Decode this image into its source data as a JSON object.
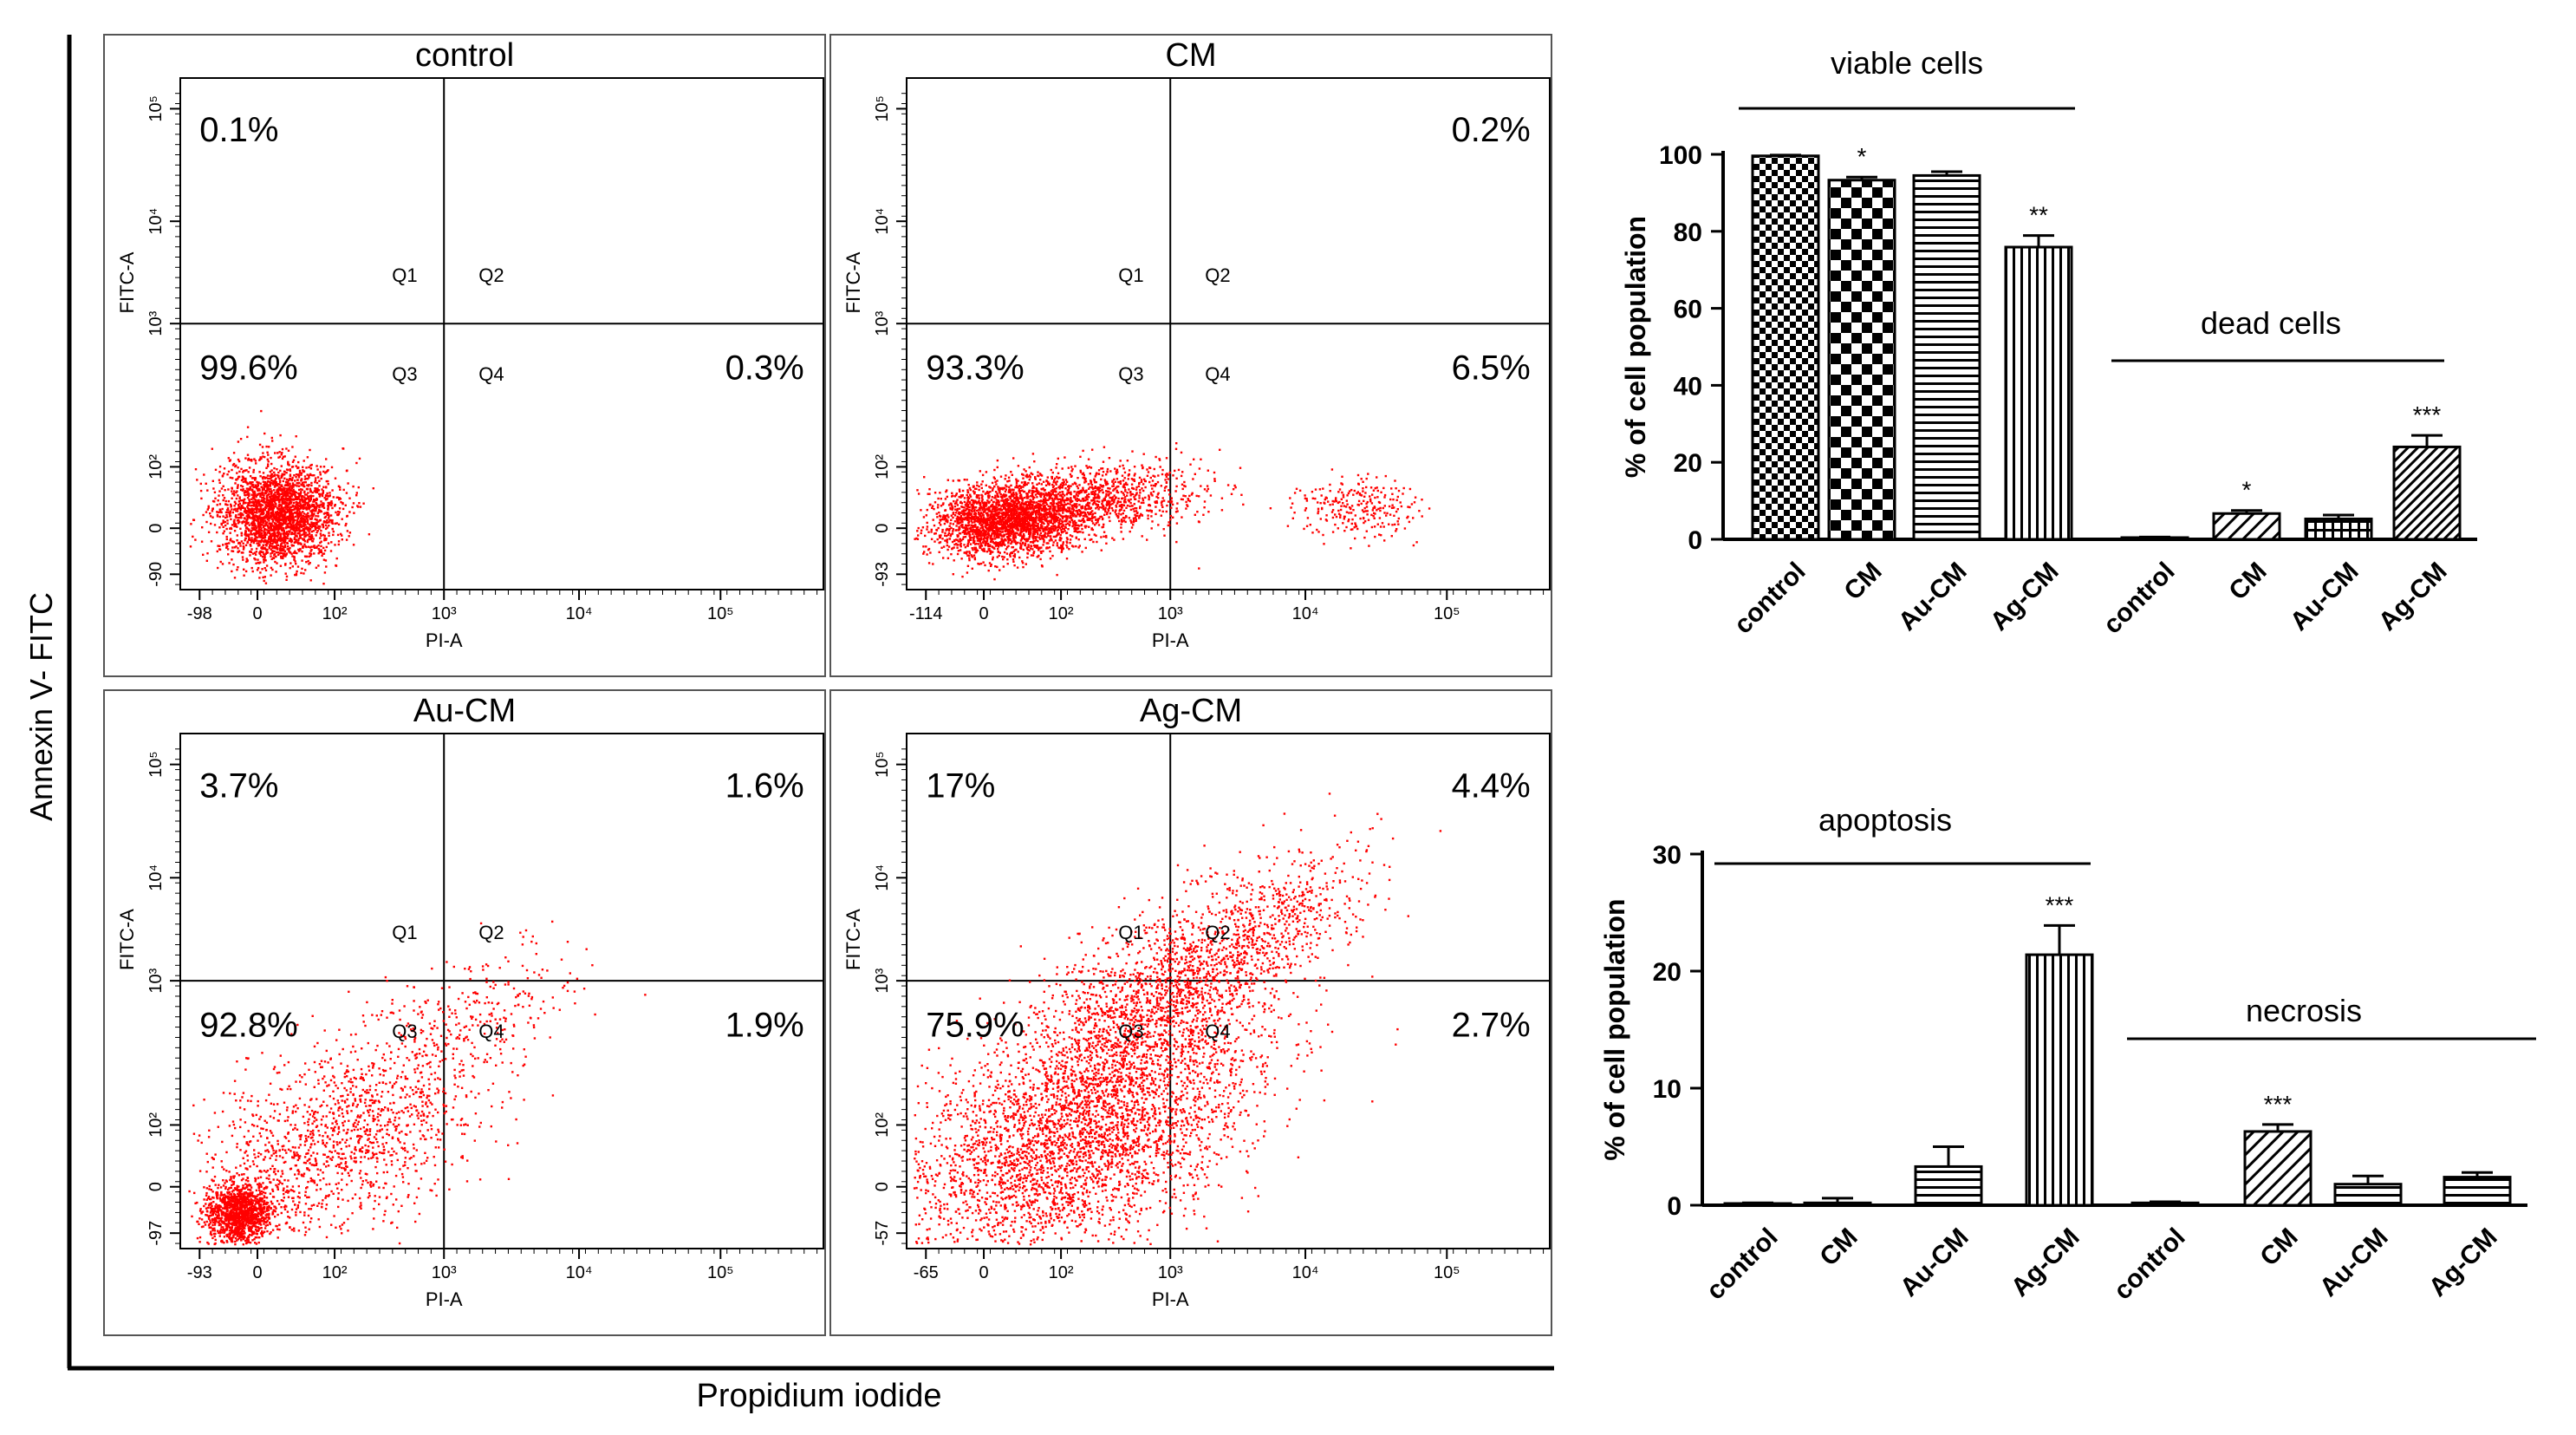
{
  "figure": {
    "y_axis_label": "Annexin V- FITC",
    "x_axis_label": "Propidium iodide"
  },
  "colors": {
    "dots": "#ff0000",
    "ink": "#000000",
    "frame": "#555555"
  },
  "chart_data": [
    {
      "type": "scatter",
      "title": "control",
      "xlabel": "PI-A",
      "ylabel": "FITC-A",
      "x_ticks": [
        "-98",
        "0",
        "10²",
        "10³",
        "10⁴",
        "10⁵"
      ],
      "y_ticks": [
        "-90",
        "0",
        "10²",
        "10³",
        "10⁴",
        "10⁵"
      ],
      "quadrant_labels": [
        "Q1",
        "Q2",
        "Q3",
        "Q4"
      ],
      "percentages": {
        "Q1": "0.1%",
        "Q2": "",
        "Q3": "99.6%",
        "Q4": "0.3%"
      }
    },
    {
      "type": "scatter",
      "title": "CM",
      "xlabel": "PI-A",
      "ylabel": "FITC-A",
      "x_ticks": [
        "-114",
        "0",
        "10²",
        "10³",
        "10⁴",
        "10⁵"
      ],
      "y_ticks": [
        "-93",
        "0",
        "10²",
        "10³",
        "10⁴",
        "10⁵"
      ],
      "quadrant_labels": [
        "Q1",
        "Q2",
        "Q3",
        "Q4"
      ],
      "percentages": {
        "Q1": "",
        "Q2": "0.2%",
        "Q3": "93.3%",
        "Q4": "6.5%"
      }
    },
    {
      "type": "scatter",
      "title": "Au-CM",
      "xlabel": "PI-A",
      "ylabel": "FITC-A",
      "x_ticks": [
        "-93",
        "0",
        "10²",
        "10³",
        "10⁴",
        "10⁵"
      ],
      "y_ticks": [
        "-97",
        "0",
        "10²",
        "10³",
        "10⁴",
        "10⁵"
      ],
      "quadrant_labels": [
        "Q1",
        "Q2",
        "Q3",
        "Q4"
      ],
      "percentages": {
        "Q1": "3.7%",
        "Q2": "1.6%",
        "Q3": "92.8%",
        "Q4": "1.9%"
      }
    },
    {
      "type": "scatter",
      "title": "Ag-CM",
      "xlabel": "PI-A",
      "ylabel": "FITC-A",
      "x_ticks": [
        "-65",
        "0",
        "10²",
        "10³",
        "10⁴",
        "10⁵"
      ],
      "y_ticks": [
        "-57",
        "0",
        "10²",
        "10³",
        "10⁴",
        "10⁵"
      ],
      "quadrant_labels": [
        "Q1",
        "Q2",
        "Q3",
        "Q4"
      ],
      "percentages": {
        "Q1": "17%",
        "Q2": "4.4%",
        "Q3": "75.9%",
        "Q4": "2.7%"
      }
    },
    {
      "type": "bar",
      "ylabel": "% of cell population",
      "ylim": [
        0,
        100
      ],
      "yticks": [
        0,
        20,
        40,
        60,
        80,
        100
      ],
      "groups": [
        {
          "label": "viable cells",
          "categories": [
            "control",
            "CM",
            "Au-CM",
            "Ag-CM"
          ],
          "values": [
            99.6,
            93.3,
            94.5,
            75.9
          ],
          "errors": [
            0.2,
            0.8,
            1.0,
            3.0
          ],
          "significance": [
            "",
            "*",
            "",
            "**"
          ],
          "patterns": [
            "checker",
            "checkerbig",
            "hlines",
            "vlines"
          ]
        },
        {
          "label": "dead cells",
          "categories": [
            "control",
            "CM",
            "Au-CM",
            "Ag-CM"
          ],
          "values": [
            0.4,
            6.7,
            5.3,
            24.0
          ],
          "errors": [
            0.2,
            0.8,
            1.0,
            3.0
          ],
          "significance": [
            "",
            "*",
            "",
            "***"
          ],
          "patterns": [
            "diag",
            "diag",
            "grid",
            "diagfine"
          ]
        }
      ]
    },
    {
      "type": "bar",
      "ylabel": "% of cell population",
      "ylim": [
        0,
        30
      ],
      "yticks": [
        0,
        10,
        20,
        30
      ],
      "groups": [
        {
          "label": "apoptosis",
          "categories": [
            "control",
            "CM",
            "Au-CM",
            "Ag-CM"
          ],
          "values": [
            0.1,
            0.2,
            3.3,
            21.4
          ],
          "errors": [
            0.1,
            0.4,
            1.7,
            2.5
          ],
          "significance": [
            "",
            "",
            "",
            "***"
          ],
          "patterns": [
            "hlines",
            "hlines",
            "hlines",
            "vlines"
          ]
        },
        {
          "label": "necrosis",
          "categories": [
            "control",
            "CM",
            "Au-CM",
            "Ag-CM"
          ],
          "values": [
            0.2,
            6.3,
            1.8,
            2.4
          ],
          "errors": [
            0.1,
            0.6,
            0.7,
            0.4
          ],
          "significance": [
            "",
            "***",
            "",
            ""
          ],
          "patterns": [
            "diag",
            "diag",
            "hlines",
            "hlines"
          ]
        }
      ]
    }
  ]
}
